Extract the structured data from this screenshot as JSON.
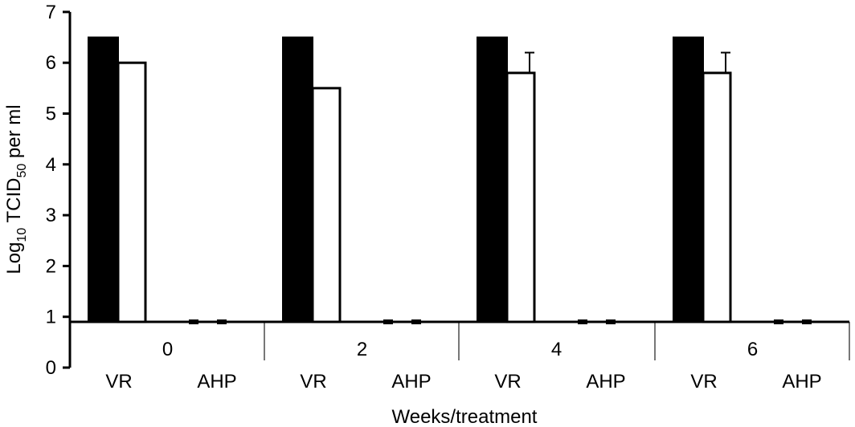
{
  "chart_data": {
    "type": "bar",
    "ylabel": {
      "prefix": "Log",
      "sub1": "10",
      "middle": " TCID",
      "sub2": "50",
      "suffix": " per ml"
    },
    "xlabel": "Weeks/treatment",
    "ylim": [
      0,
      7
    ],
    "yticks": [
      "0",
      "1",
      "2",
      "3",
      "4",
      "5",
      "6",
      "7"
    ],
    "baseline": 0.9,
    "groups": [
      {
        "week": "0",
        "treatments": [
          "VR",
          "AHP"
        ]
      },
      {
        "week": "2",
        "treatments": [
          "VR",
          "AHP"
        ]
      },
      {
        "week": "4",
        "treatments": [
          "VR",
          "AHP"
        ]
      },
      {
        "week": "6",
        "treatments": [
          "VR",
          "AHP"
        ]
      }
    ],
    "series": [
      {
        "fill": "#000000",
        "values": [
          6.5,
          0.9,
          6.5,
          0.9,
          6.5,
          0.9,
          6.5,
          0.9
        ],
        "errors": [
          0,
          0,
          0,
          0,
          0,
          0,
          0,
          0
        ]
      },
      {
        "fill": "#ffffff",
        "values": [
          6.0,
          0.9,
          5.5,
          0.9,
          5.8,
          0.9,
          5.8,
          0.9
        ],
        "errors": [
          0,
          0,
          0,
          0,
          0.4,
          0,
          0.4,
          0
        ]
      }
    ]
  }
}
